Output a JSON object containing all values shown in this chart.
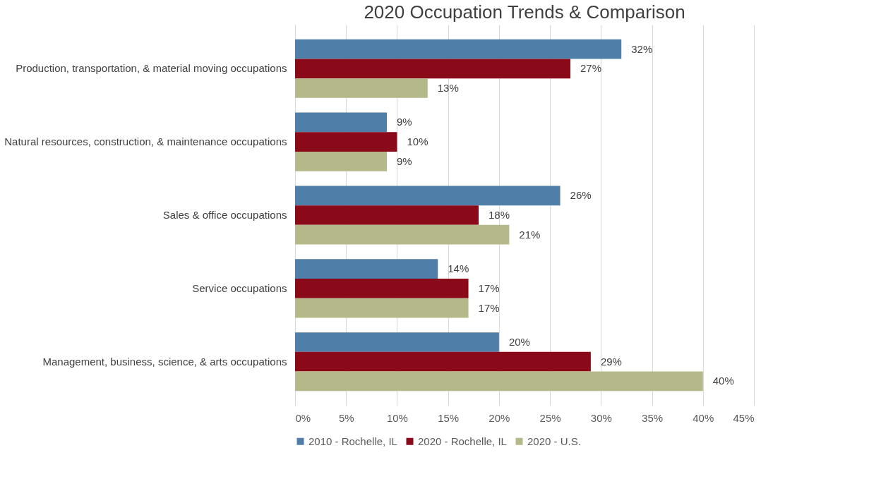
{
  "chart_data": {
    "type": "bar",
    "orientation": "horizontal",
    "title": "2020 Occupation Trends & Comparison",
    "categories": [
      "Production, transportation, & material moving occupations",
      "Natural resources, construction, & maintenance occupations",
      "Sales & office occupations",
      "Service occupations",
      "Management, business, science, & arts occupations"
    ],
    "series": [
      {
        "name": "2010 - Rochelle, IL",
        "color": "#4f7ea8",
        "values": [
          32,
          9,
          26,
          14,
          20
        ],
        "value_labels": [
          "32%",
          "9%",
          "26%",
          "14%",
          "20%"
        ]
      },
      {
        "name": "2020 - Rochelle, IL",
        "color": "#8b0a1a",
        "values": [
          27,
          10,
          18,
          17,
          29
        ],
        "value_labels": [
          "27%",
          "10%",
          "18%",
          "17%",
          "29%"
        ]
      },
      {
        "name": "2020 - U.S.",
        "color": "#b5b98a",
        "values": [
          13,
          9,
          21,
          17,
          40
        ],
        "value_labels": [
          "13%",
          "9%",
          "21%",
          "17%",
          "40%"
        ]
      }
    ],
    "xlim": [
      0,
      45
    ],
    "xticks": [
      {
        "value": 0,
        "label": "0%"
      },
      {
        "value": 5,
        "label": "5%"
      },
      {
        "value": 10,
        "label": "10%"
      },
      {
        "value": 15,
        "label": "15%"
      },
      {
        "value": 20,
        "label": "20%"
      },
      {
        "value": 25,
        "label": "25%"
      },
      {
        "value": 30,
        "label": "30%"
      },
      {
        "value": 35,
        "label": "35%"
      },
      {
        "value": 40,
        "label": "40%"
      },
      {
        "value": 45,
        "label": "45%"
      }
    ],
    "grid": "x",
    "legend": "bottom"
  }
}
